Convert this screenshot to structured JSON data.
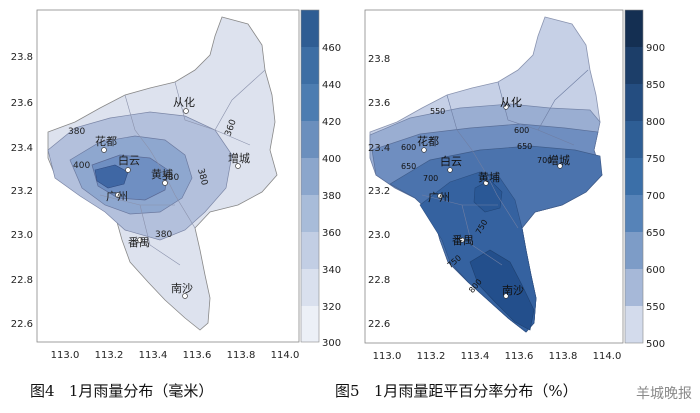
{
  "figures": [
    {
      "caption": "图4   1月雨量分布（毫米）",
      "map_axes": {
        "x_ticks": [
          "113.0",
          "113.2",
          "113.4",
          "113.6",
          "113.8",
          "114.0"
        ],
        "y_ticks": [
          "23.8",
          "23.6",
          "23.4",
          "23.2",
          "23.0",
          "22.8",
          "22.6"
        ]
      },
      "colorbar": {
        "ticks": [
          "460",
          "440",
          "420",
          "400",
          "380",
          "360",
          "340",
          "320",
          "300"
        ],
        "colors": [
          "#2f5d93",
          "#3d6ea4",
          "#4d7db1",
          "#6b8fbd",
          "#8ba6cc",
          "#a8bcd9",
          "#c2cee4",
          "#d9e0ee",
          "#ecf0f7"
        ]
      },
      "contour_labels": [
        "380",
        "400",
        "360",
        "380",
        "380",
        "380"
      ],
      "place_names": [
        "从化",
        "花都",
        "白云",
        "黄埔",
        "广州",
        "增城",
        "番禺",
        "南沙"
      ]
    },
    {
      "caption": "图5   1月雨量距平百分率分布（%）",
      "map_axes": {
        "x_ticks": [
          "113.0",
          "113.2",
          "113.4",
          "113.6",
          "113.8",
          "114.0"
        ],
        "y_ticks": [
          "23.8",
          "23.6",
          "23.4",
          "23.2",
          "23.0",
          "22.8",
          "22.6"
        ]
      },
      "colorbar": {
        "ticks": [
          "900",
          "850",
          "800",
          "750",
          "700",
          "650",
          "600",
          "550",
          "500"
        ],
        "colors": [
          "#142f52",
          "#1c3e69",
          "#244d80",
          "#2e5e95",
          "#3b6fa8",
          "#5683b8",
          "#7d9cc7",
          "#a6b8d8",
          "#d3dbec"
        ]
      },
      "contour_labels": [
        "550",
        "600",
        "650",
        "700",
        "650",
        "600",
        "700",
        "750",
        "750",
        "800"
      ],
      "place_names": [
        "从化",
        "花都",
        "白云",
        "黄埔",
        "广州",
        "增城",
        "番禺",
        "南沙"
      ]
    }
  ],
  "watermark": "羊城晚报"
}
